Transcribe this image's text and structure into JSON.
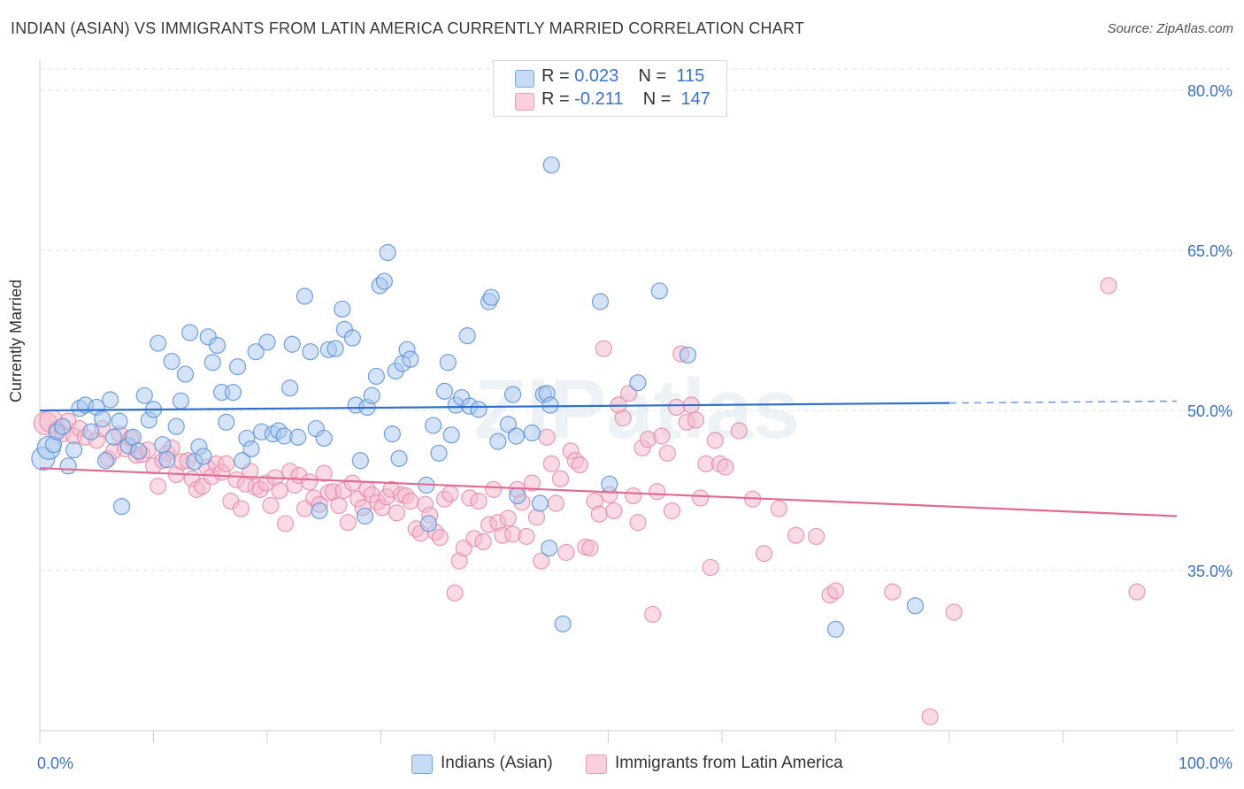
{
  "title": "INDIAN (ASIAN) VS IMMIGRANTS FROM LATIN AMERICA CURRENTLY MARRIED CORRELATION CHART",
  "source": "Source: ZipAtlas.com",
  "watermark": "ZIPatlas",
  "legend": {
    "rows": [
      {
        "r_label": "R =",
        "r_value": "0.023",
        "n_label": "N =",
        "n_value": "115",
        "color": "#a9c8f0"
      },
      {
        "r_label": "R =",
        "r_value": "-0.211",
        "n_label": "N =",
        "n_value": "147",
        "color": "#f5b8cb"
      }
    ]
  },
  "bottom_legend": [
    "Indians (Asian)",
    "Immigrants from Latin America"
  ],
  "chart_data": {
    "type": "scatter",
    "title": "INDIAN (ASIAN) VS IMMIGRANTS FROM LATIN AMERICA CURRENTLY MARRIED CORRELATION CHART",
    "xlabel": "",
    "ylabel": "Currently Married",
    "xlim": [
      0,
      100
    ],
    "ylim": [
      20,
      82
    ],
    "x_tick_labels": [
      "0.0%",
      "100.0%"
    ],
    "y_ticks": [
      35,
      50,
      65,
      80
    ],
    "y_tick_labels": [
      "35.0%",
      "50.0%",
      "65.0%",
      "80.0%"
    ],
    "grid": true,
    "legend_position": "top-center",
    "colors": {
      "series1_fill": "#a9c8f0",
      "series1_stroke": "#5b8fd6",
      "series1_line": "#2f6fcd",
      "series2_fill": "#f5b8cb",
      "series2_stroke": "#e58aa7",
      "series2_line": "#e06c96",
      "tick_label": "#3a72c8"
    },
    "series": [
      {
        "name": "Indians (Asian)",
        "trend": {
          "x": [
            0,
            80
          ],
          "y": [
            50.0,
            50.7
          ],
          "dashed_to": 100
        },
        "points": [
          [
            0.3,
            45.5
          ],
          [
            0.8,
            46.5
          ],
          [
            1.2,
            46.8
          ],
          [
            1.5,
            48.0
          ],
          [
            2.0,
            48.5
          ],
          [
            2.5,
            44.8
          ],
          [
            3.0,
            46.3
          ],
          [
            3.5,
            50.2
          ],
          [
            4.0,
            50.5
          ],
          [
            4.5,
            48.0
          ],
          [
            5.0,
            50.3
          ],
          [
            5.5,
            49.2
          ],
          [
            5.8,
            45.3
          ],
          [
            6.2,
            51.0
          ],
          [
            6.5,
            47.5
          ],
          [
            7.0,
            49.0
          ],
          [
            7.2,
            41.0
          ],
          [
            7.8,
            46.7
          ],
          [
            8.2,
            47.5
          ],
          [
            8.7,
            46.2
          ],
          [
            9.2,
            51.4
          ],
          [
            9.6,
            49.1
          ],
          [
            10.0,
            50.1
          ],
          [
            10.4,
            56.3
          ],
          [
            10.8,
            46.8
          ],
          [
            11.2,
            45.4
          ],
          [
            11.6,
            54.6
          ],
          [
            12.0,
            48.5
          ],
          [
            12.4,
            50.9
          ],
          [
            12.8,
            53.4
          ],
          [
            13.2,
            57.3
          ],
          [
            13.6,
            45.2
          ],
          [
            14.0,
            46.6
          ],
          [
            14.4,
            45.7
          ],
          [
            14.8,
            56.9
          ],
          [
            15.2,
            54.5
          ],
          [
            15.6,
            56.1
          ],
          [
            16.0,
            51.7
          ],
          [
            16.4,
            48.9
          ],
          [
            17.0,
            51.7
          ],
          [
            17.4,
            54.1
          ],
          [
            17.8,
            45.3
          ],
          [
            18.2,
            47.4
          ],
          [
            18.6,
            46.4
          ],
          [
            19.0,
            55.5
          ],
          [
            19.5,
            48.0
          ],
          [
            20.0,
            56.4
          ],
          [
            20.5,
            47.8
          ],
          [
            21.0,
            48.1
          ],
          [
            21.5,
            47.6
          ],
          [
            22.0,
            52.1
          ],
          [
            22.2,
            56.2
          ],
          [
            22.7,
            47.5
          ],
          [
            23.3,
            60.7
          ],
          [
            23.8,
            55.5
          ],
          [
            24.3,
            48.3
          ],
          [
            24.6,
            40.6
          ],
          [
            25.0,
            47.4
          ],
          [
            25.4,
            55.7
          ],
          [
            26.0,
            55.8
          ],
          [
            26.6,
            59.5
          ],
          [
            26.8,
            57.6
          ],
          [
            27.5,
            56.8
          ],
          [
            27.8,
            50.5
          ],
          [
            28.2,
            45.3
          ],
          [
            28.6,
            40.1
          ],
          [
            28.8,
            50.3
          ],
          [
            29.2,
            51.4
          ],
          [
            29.6,
            53.2
          ],
          [
            29.9,
            61.7
          ],
          [
            30.3,
            62.1
          ],
          [
            30.6,
            64.8
          ],
          [
            31.0,
            47.8
          ],
          [
            31.3,
            53.7
          ],
          [
            31.6,
            45.5
          ],
          [
            31.9,
            54.4
          ],
          [
            32.3,
            55.7
          ],
          [
            32.6,
            54.8
          ],
          [
            34.0,
            43.0
          ],
          [
            34.2,
            39.4
          ],
          [
            34.6,
            48.6
          ],
          [
            35.1,
            46.0
          ],
          [
            35.6,
            51.8
          ],
          [
            35.9,
            54.5
          ],
          [
            36.2,
            47.7
          ],
          [
            36.6,
            50.5
          ],
          [
            37.1,
            51.2
          ],
          [
            37.6,
            57.0
          ],
          [
            37.8,
            50.4
          ],
          [
            38.6,
            50.1
          ],
          [
            39.5,
            60.2
          ],
          [
            39.7,
            60.6
          ],
          [
            40.3,
            47.1
          ],
          [
            41.2,
            48.7
          ],
          [
            41.6,
            51.5
          ],
          [
            41.9,
            47.6
          ],
          [
            42.0,
            42.0
          ],
          [
            43.3,
            47.9
          ],
          [
            44.0,
            41.3
          ],
          [
            44.3,
            51.5
          ],
          [
            44.6,
            51.6
          ],
          [
            44.9,
            50.5
          ],
          [
            45.0,
            73.0
          ],
          [
            44.8,
            37.1
          ],
          [
            46.0,
            30.0
          ],
          [
            49.3,
            60.2
          ],
          [
            50.1,
            43.1
          ],
          [
            52.6,
            52.6
          ],
          [
            54.5,
            61.2
          ],
          [
            57.0,
            55.2
          ],
          [
            70.0,
            29.5
          ],
          [
            77.0,
            31.7
          ]
        ]
      },
      {
        "name": "Immigrants from Latin America",
        "trend": {
          "x": [
            0,
            100
          ],
          "y": [
            44.6,
            40.1
          ]
        },
        "points": [
          [
            0.5,
            48.8
          ],
          [
            1.0,
            49.0
          ],
          [
            1.5,
            48.2
          ],
          [
            2.0,
            47.8
          ],
          [
            2.5,
            49.0
          ],
          [
            3.0,
            47.6
          ],
          [
            3.5,
            48.3
          ],
          [
            4.0,
            47.5
          ],
          [
            5.0,
            47.2
          ],
          [
            5.5,
            48.3
          ],
          [
            6.0,
            45.5
          ],
          [
            6.5,
            46.2
          ],
          [
            7.0,
            47.8
          ],
          [
            7.5,
            46.4
          ],
          [
            8.0,
            47.4
          ],
          [
            8.5,
            45.8
          ],
          [
            9.0,
            45.9
          ],
          [
            9.5,
            46.3
          ],
          [
            10.0,
            44.8
          ],
          [
            10.4,
            42.9
          ],
          [
            10.8,
            45.3
          ],
          [
            11.2,
            46.0
          ],
          [
            11.6,
            46.5
          ],
          [
            12.0,
            44.0
          ],
          [
            12.5,
            45.2
          ],
          [
            13.0,
            45.3
          ],
          [
            13.4,
            43.6
          ],
          [
            13.8,
            42.6
          ],
          [
            14.3,
            42.9
          ],
          [
            14.7,
            44.7
          ],
          [
            15.1,
            43.8
          ],
          [
            15.5,
            45.0
          ],
          [
            16.0,
            44.2
          ],
          [
            16.4,
            45.0
          ],
          [
            16.8,
            41.5
          ],
          [
            17.3,
            43.5
          ],
          [
            17.7,
            40.8
          ],
          [
            18.1,
            43.1
          ],
          [
            18.5,
            44.3
          ],
          [
            19.0,
            42.8
          ],
          [
            19.4,
            42.6
          ],
          [
            19.9,
            43.2
          ],
          [
            20.3,
            41.1
          ],
          [
            20.7,
            43.7
          ],
          [
            21.1,
            42.5
          ],
          [
            21.6,
            39.4
          ],
          [
            22.0,
            44.3
          ],
          [
            22.4,
            43.0
          ],
          [
            22.8,
            43.9
          ],
          [
            23.3,
            40.8
          ],
          [
            23.7,
            43.3
          ],
          [
            24.1,
            41.8
          ],
          [
            24.6,
            41.2
          ],
          [
            25.0,
            44.1
          ],
          [
            25.4,
            42.3
          ],
          [
            25.8,
            42.4
          ],
          [
            26.3,
            41.1
          ],
          [
            26.7,
            42.5
          ],
          [
            27.1,
            39.5
          ],
          [
            27.5,
            43.2
          ],
          [
            28.0,
            41.7
          ],
          [
            28.4,
            40.9
          ],
          [
            28.8,
            42.6
          ],
          [
            29.2,
            42.1
          ],
          [
            29.7,
            41.4
          ],
          [
            30.1,
            40.9
          ],
          [
            30.5,
            41.9
          ],
          [
            30.9,
            42.6
          ],
          [
            31.4,
            40.4
          ],
          [
            31.8,
            42.1
          ],
          [
            32.2,
            42.0
          ],
          [
            32.6,
            41.5
          ],
          [
            33.1,
            38.9
          ],
          [
            33.5,
            38.5
          ],
          [
            33.9,
            41.2
          ],
          [
            34.3,
            40.2
          ],
          [
            34.8,
            38.6
          ],
          [
            35.2,
            38.1
          ],
          [
            35.6,
            41.7
          ],
          [
            36.1,
            42.2
          ],
          [
            36.5,
            32.9
          ],
          [
            36.9,
            35.9
          ],
          [
            37.3,
            37.1
          ],
          [
            37.8,
            41.8
          ],
          [
            38.2,
            38.0
          ],
          [
            38.6,
            41.5
          ],
          [
            39.0,
            37.7
          ],
          [
            39.5,
            39.3
          ],
          [
            39.9,
            42.6
          ],
          [
            40.3,
            39.5
          ],
          [
            40.7,
            38.3
          ],
          [
            41.2,
            39.9
          ],
          [
            41.6,
            38.4
          ],
          [
            42.0,
            42.6
          ],
          [
            42.4,
            41.4
          ],
          [
            42.8,
            38.2
          ],
          [
            43.3,
            43.2
          ],
          [
            43.7,
            40.0
          ],
          [
            44.1,
            35.9
          ],
          [
            44.6,
            47.5
          ],
          [
            45.0,
            45.0
          ],
          [
            45.4,
            41.3
          ],
          [
            45.8,
            43.6
          ],
          [
            46.3,
            36.7
          ],
          [
            46.7,
            46.2
          ],
          [
            47.1,
            45.3
          ],
          [
            47.5,
            44.9
          ],
          [
            48.0,
            37.2
          ],
          [
            48.4,
            37.1
          ],
          [
            48.8,
            41.5
          ],
          [
            49.2,
            40.3
          ],
          [
            49.6,
            55.8
          ],
          [
            50.1,
            42.1
          ],
          [
            50.5,
            40.6
          ],
          [
            50.9,
            50.5
          ],
          [
            51.3,
            49.3
          ],
          [
            51.8,
            51.6
          ],
          [
            52.2,
            42.0
          ],
          [
            52.6,
            39.5
          ],
          [
            53.0,
            46.5
          ],
          [
            53.5,
            47.3
          ],
          [
            53.9,
            30.9
          ],
          [
            54.3,
            42.4
          ],
          [
            54.7,
            47.6
          ],
          [
            55.2,
            46.0
          ],
          [
            55.6,
            40.6
          ],
          [
            56.0,
            50.3
          ],
          [
            56.4,
            55.3
          ],
          [
            56.9,
            48.9
          ],
          [
            57.3,
            50.5
          ],
          [
            57.7,
            49.1
          ],
          [
            58.1,
            41.8
          ],
          [
            58.6,
            45.0
          ],
          [
            59.0,
            35.3
          ],
          [
            59.4,
            47.2
          ],
          [
            59.8,
            45.0
          ],
          [
            60.3,
            44.7
          ],
          [
            61.5,
            48.1
          ],
          [
            62.7,
            41.7
          ],
          [
            63.7,
            36.6
          ],
          [
            65.0,
            40.8
          ],
          [
            66.5,
            38.3
          ],
          [
            68.3,
            38.2
          ],
          [
            69.5,
            32.7
          ],
          [
            70.0,
            33.1
          ],
          [
            75.0,
            33.0
          ],
          [
            78.3,
            21.3
          ],
          [
            80.4,
            31.1
          ],
          [
            94.0,
            61.7
          ],
          [
            96.5,
            33.0
          ]
        ]
      }
    ]
  }
}
